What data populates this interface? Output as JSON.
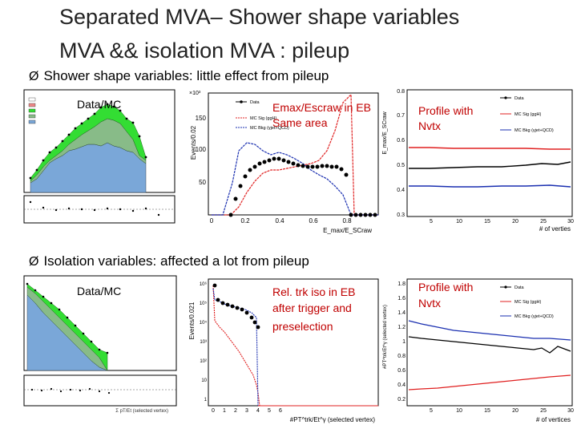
{
  "slide": {
    "title_line1": "Separated MVA– Shower shape variables",
    "title_line2": "MVA && isolation MVA : pileup",
    "bullet1": "Shower shape variables: little effect from pileup",
    "bullet2": "Isolation variables: affected a lot from pileup",
    "bullet_glyph": "Ø"
  },
  "overlays": {
    "p1": "Data/MC",
    "p2_line1": "Emax/Escraw in EB",
    "p2_line2": "Same area",
    "p3_line1": "Profile with",
    "p3_line2": "Nvtx",
    "p4": "Data/MC",
    "p5_line1": "Rel. trk iso in EB",
    "p5_line2": "after trigger and",
    "p5_line3": "preselection",
    "p6_line1": "Profile with",
    "p6_line2": "Nvtx"
  },
  "legend": {
    "data": "Data",
    "sig": "MC Sig (ggH)",
    "bkg": "MC Bkg (γjet+QCD)"
  },
  "axes": {
    "p2_ylabel": "Events/0.02",
    "p2_xlabel": "E_max/E_SCraw",
    "p2_yticks": [
      "50",
      "100",
      "150"
    ],
    "p2_xticks": [
      "0",
      "0.2",
      "0.4",
      "0.6",
      "0.8"
    ],
    "p3_xlabel": "# of verties",
    "p3_yticks": [
      "0.8",
      "0.7",
      "0.6",
      "0.5",
      "0.4",
      "0.3"
    ],
    "p3_xticks": [
      "5",
      "10",
      "15",
      "20",
      "25",
      "30"
    ],
    "p5_ylabel": "Events/0.021",
    "p5_xlabel": "#PT^trk/Et^γ (selected vertex)",
    "p5_yticks": [
      "10⁶",
      "10⁵",
      "10⁴",
      "10³",
      "10²",
      "10",
      "1"
    ],
    "p5_xticks": [
      "0",
      "1",
      "2",
      "3",
      "4",
      "5",
      "6"
    ],
    "p6_ylabel": "#PT^trk/Et^γ (selected vertex)",
    "p6_xlabel": "# of vertices",
    "p6_yticks": [
      "1.8",
      "1.6",
      "1.4",
      "1.2",
      "1",
      "0.8",
      "0.6",
      "0.4",
      "0.2"
    ],
    "p6_xticks": [
      "5",
      "10",
      "15",
      "20",
      "25",
      "30"
    ]
  },
  "colors": {
    "data": "#000000",
    "signal": "#e02020",
    "background": "#1a2fb0",
    "stack_fill": "#7aa7d8",
    "stack_green": "#33dd33",
    "stack_olive": "#88bb88",
    "title": "#222222",
    "overlay_red": "#c00000"
  }
}
